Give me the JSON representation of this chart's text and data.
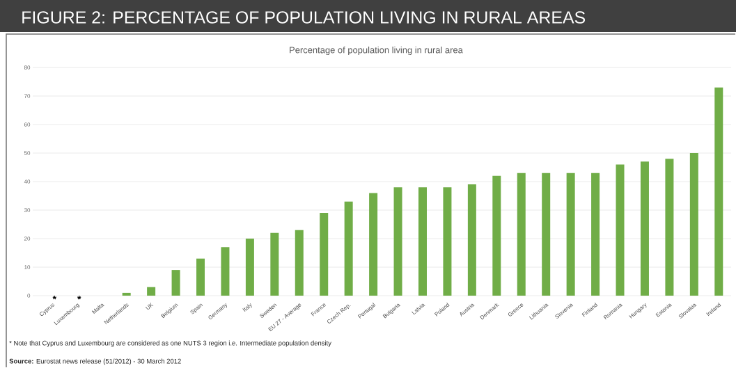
{
  "chart_data": {
    "type": "bar",
    "title": "FIGURE 2: PERCENTAGE OF POPULATION LIVING IN RURAL AREAS",
    "subtitle": "Percentage of population living in rural area",
    "categories": [
      "Cyprus",
      "Luxembourg",
      "Malta",
      "Netherlands",
      "UK",
      "Belgium",
      "Spain",
      "Germany",
      "Italy",
      "Sweden",
      "EU 27 - Average",
      "France",
      "Czech Rep.",
      "Portugal",
      "Bulgaria",
      "Latvia",
      "Poland",
      "Austria",
      "Denmark",
      "Greece",
      "Lithuania",
      "Slovenia",
      "Finland",
      "Romania",
      "Hungary",
      "Estonia",
      "Slovakia",
      "Ireland"
    ],
    "values": [
      null,
      null,
      0,
      1,
      3,
      9,
      13,
      17,
      20,
      22,
      23,
      29,
      33,
      36,
      38,
      38,
      38,
      39,
      42,
      43,
      43,
      43,
      43,
      46,
      47,
      48,
      50,
      73
    ],
    "color": "#70ad47",
    "ylim": [
      0,
      80
    ],
    "yticks": [
      0,
      10,
      20,
      30,
      40,
      50,
      60,
      70,
      80
    ],
    "grid": "y",
    "annotations": [
      "*",
      "*",
      "* Note that Cyprus and Luxembourg are considered as one NUTS 3 region i.e. Intermediate population density",
      "**Source:**  Eurostat news release (51/2012) - 30 March 2012"
    ]
  }
}
